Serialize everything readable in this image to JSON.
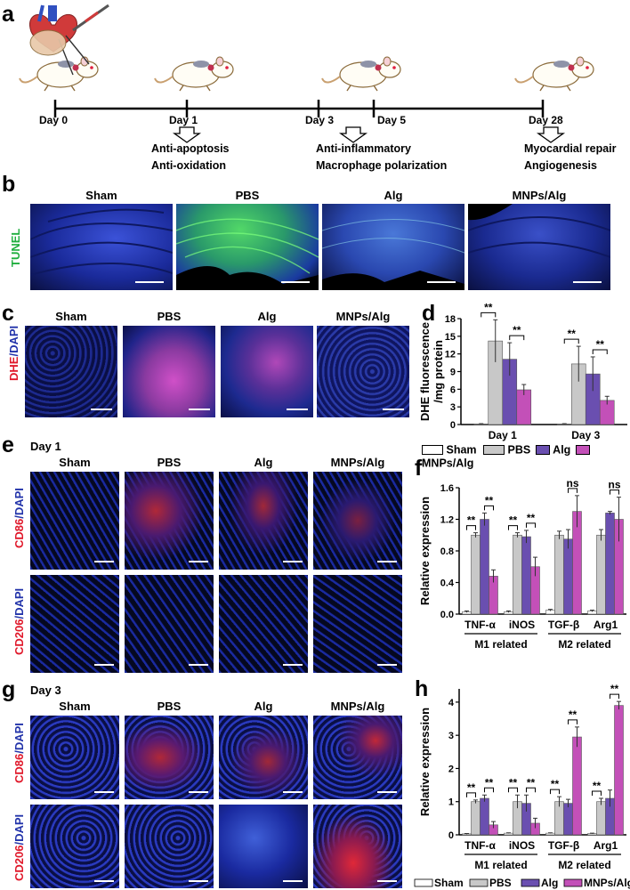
{
  "panel_labels": [
    "a",
    "b",
    "c",
    "d",
    "e",
    "f",
    "g",
    "h"
  ],
  "timeline": {
    "days": [
      "Day 0",
      "Day 1",
      "Day 3",
      "Day 5",
      "Day 28"
    ],
    "effects": [
      {
        "lines": [
          "Anti-apoptosis",
          "Anti-oxidation"
        ]
      },
      {
        "lines": [
          "Anti-inflammatory",
          "Macrophage polarization"
        ]
      },
      {
        "lines": [
          "Myocardial repair",
          "Angiogenesis"
        ]
      }
    ]
  },
  "groups": [
    "Sham",
    "PBS",
    "Alg",
    "MNPs/Alg"
  ],
  "panel_b": {
    "stain": "TUNEL"
  },
  "panel_c": {
    "stain_a": "DHE",
    "stain_b": "/DAPI"
  },
  "panel_e": {
    "day": "Day 1",
    "rows": [
      {
        "a": "CD86",
        "b": "/DAPI"
      },
      {
        "a": "CD206",
        "b": "/DAPI"
      }
    ]
  },
  "panel_g": {
    "day": "Day 3",
    "rows": [
      {
        "a": "CD86",
        "b": "/DAPI"
      },
      {
        "a": "CD206",
        "b": "/DAPI"
      }
    ]
  },
  "legend": [
    "Sham",
    "PBS",
    "Alg",
    "MNPs/Alg"
  ],
  "colors": {
    "Sham": "#ffffff",
    "PBS": "#c8c8c8",
    "Alg": "#6a4fb0",
    "MNPs/Alg": "#c350b8",
    "tunel": "#2fd04a",
    "nuclei": "#2a3fd0",
    "red": "#e0182a"
  },
  "chart_data": [
    {
      "panel": "d",
      "type": "bar",
      "ylabel": "DHE fluorescence /mg protein",
      "ylim": [
        0,
        18
      ],
      "yticks": [
        0,
        3,
        6,
        9,
        12,
        15,
        18
      ],
      "categories": [
        "Day 1",
        "Day 3"
      ],
      "series": [
        {
          "name": "Sham",
          "values": [
            0.1,
            0.1
          ],
          "err": [
            0.05,
            0.05
          ]
        },
        {
          "name": "PBS",
          "values": [
            14.2,
            10.3
          ],
          "err": [
            3.6,
            3.0
          ]
        },
        {
          "name": "Alg",
          "values": [
            11.1,
            8.6
          ],
          "err": [
            2.8,
            2.9
          ]
        },
        {
          "name": "MNPs/Alg",
          "values": [
            5.9,
            4.1
          ],
          "err": [
            0.9,
            0.7
          ]
        }
      ],
      "significance": [
        {
          "cat": 0,
          "from": 0,
          "to": 1,
          "label": "**"
        },
        {
          "cat": 0,
          "from": 2,
          "to": 3,
          "label": "**"
        },
        {
          "cat": 1,
          "from": 0,
          "to": 1,
          "label": "**"
        },
        {
          "cat": 1,
          "from": 2,
          "to": 3,
          "label": "**"
        }
      ]
    },
    {
      "panel": "f",
      "type": "bar",
      "ylabel": "Relative expression",
      "ylim": [
        0,
        1.6
      ],
      "yticks": [
        0.0,
        0.4,
        0.8,
        1.2,
        1.6
      ],
      "categories": [
        "TNF-α",
        "iNOS",
        "TGF-β",
        "Arg1"
      ],
      "group_labels": [
        "M1 related",
        "M2 related"
      ],
      "series": [
        {
          "name": "Sham",
          "values": [
            0.03,
            0.03,
            0.05,
            0.04
          ],
          "err": [
            0.01,
            0.01,
            0.01,
            0.01
          ]
        },
        {
          "name": "PBS",
          "values": [
            1.0,
            1.0,
            1.0,
            1.0
          ],
          "err": [
            0.03,
            0.03,
            0.05,
            0.07
          ]
        },
        {
          "name": "Alg",
          "values": [
            1.2,
            0.98,
            0.95,
            1.28
          ],
          "err": [
            0.08,
            0.08,
            0.12,
            0.02
          ]
        },
        {
          "name": "MNPs/Alg",
          "values": [
            0.48,
            0.6,
            1.3,
            1.2
          ],
          "err": [
            0.08,
            0.12,
            0.2,
            0.28
          ]
        }
      ],
      "significance": [
        {
          "cat": 0,
          "from": 0,
          "to": 1,
          "label": "**"
        },
        {
          "cat": 0,
          "from": 2,
          "to": 3,
          "label": "**"
        },
        {
          "cat": 1,
          "from": 0,
          "to": 1,
          "label": "**"
        },
        {
          "cat": 1,
          "from": 2,
          "to": 3,
          "label": "**"
        },
        {
          "cat": 2,
          "from": 2,
          "to": 3,
          "label": "ns"
        },
        {
          "cat": 3,
          "from": 2,
          "to": 3,
          "label": "ns"
        }
      ]
    },
    {
      "panel": "h",
      "type": "bar",
      "ylabel": "Relative expression",
      "ylim": [
        0,
        4.4
      ],
      "yticks": [
        0,
        1,
        2,
        3,
        4
      ],
      "categories": [
        "TNF-α",
        "iNOS",
        "TGF-β",
        "Arg1"
      ],
      "group_labels": [
        "M1 related",
        "M2 related"
      ],
      "series": [
        {
          "name": "Sham",
          "values": [
            0.03,
            0.05,
            0.05,
            0.04
          ],
          "err": [
            0.01,
            0.01,
            0.01,
            0.01
          ]
        },
        {
          "name": "PBS",
          "values": [
            1.0,
            1.0,
            1.0,
            1.0
          ],
          "err": [
            0.05,
            0.2,
            0.15,
            0.1
          ]
        },
        {
          "name": "Alg",
          "values": [
            1.1,
            0.95,
            0.95,
            1.1
          ],
          "err": [
            0.1,
            0.25,
            0.12,
            0.25
          ]
        },
        {
          "name": "MNPs/Alg",
          "values": [
            0.3,
            0.35,
            2.95,
            3.9
          ],
          "err": [
            0.1,
            0.15,
            0.3,
            0.12
          ]
        }
      ],
      "significance": [
        {
          "cat": 0,
          "from": 0,
          "to": 1,
          "label": "**"
        },
        {
          "cat": 0,
          "from": 2,
          "to": 3,
          "label": "**"
        },
        {
          "cat": 1,
          "from": 0,
          "to": 1,
          "label": "**"
        },
        {
          "cat": 1,
          "from": 2,
          "to": 3,
          "label": "**"
        },
        {
          "cat": 2,
          "from": 0,
          "to": 1,
          "label": "**"
        },
        {
          "cat": 2,
          "from": 2,
          "to": 3,
          "label": "**"
        },
        {
          "cat": 3,
          "from": 0,
          "to": 1,
          "label": "**"
        },
        {
          "cat": 3,
          "from": 2,
          "to": 3,
          "label": "**"
        }
      ]
    }
  ]
}
